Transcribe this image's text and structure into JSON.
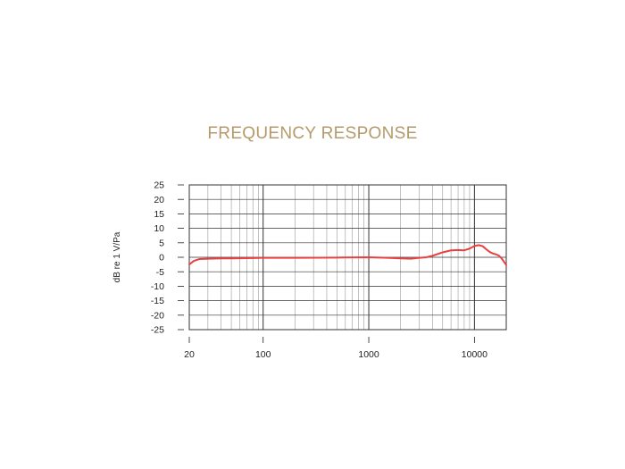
{
  "colors": {
    "title": "#b49a6a",
    "curve": "#e84040",
    "grid": "#999999",
    "grid_major": "#333333",
    "text": "#222222"
  },
  "chart_data": {
    "type": "line",
    "title": "FREQUENCY RESPONSE",
    "xlabel": "",
    "ylabel": "dB re 1 V/Pa",
    "xscale": "log",
    "xlim": [
      20,
      20000
    ],
    "ylim": [
      -25,
      25
    ],
    "xticks": [
      20,
      100,
      1000,
      10000
    ],
    "xtick_labels": [
      "20",
      "100",
      "1000",
      "10000"
    ],
    "yticks": [
      25,
      20,
      15,
      10,
      5,
      0,
      -5,
      -10,
      -15,
      -20,
      -25
    ],
    "ytick_labels": [
      "25",
      "20",
      "15",
      "10",
      "5",
      "0",
      "-5",
      "-10",
      "-15",
      "-20",
      "-25"
    ],
    "grid": true,
    "series": [
      {
        "x": [
          20,
          22,
          25,
          30,
          40,
          50,
          70,
          100,
          200,
          500,
          1000,
          1500,
          2000,
          2500,
          3000,
          3500,
          4000,
          5000,
          6000,
          7000,
          8000,
          9000,
          10000,
          11000,
          12000,
          13000,
          14000,
          15000,
          16000,
          17000,
          18000,
          19000,
          20000
        ],
        "y": [
          -2.5,
          -1.3,
          -0.6,
          -0.5,
          -0.4,
          -0.4,
          -0.3,
          -0.2,
          -0.2,
          -0.1,
          0,
          -0.2,
          -0.4,
          -0.5,
          -0.2,
          0,
          0.5,
          1.7,
          2.4,
          2.5,
          2.4,
          3.0,
          3.9,
          4.2,
          3.8,
          2.7,
          1.8,
          1.3,
          1.0,
          0.6,
          -0.3,
          -1.5,
          -2.7
        ]
      }
    ]
  }
}
